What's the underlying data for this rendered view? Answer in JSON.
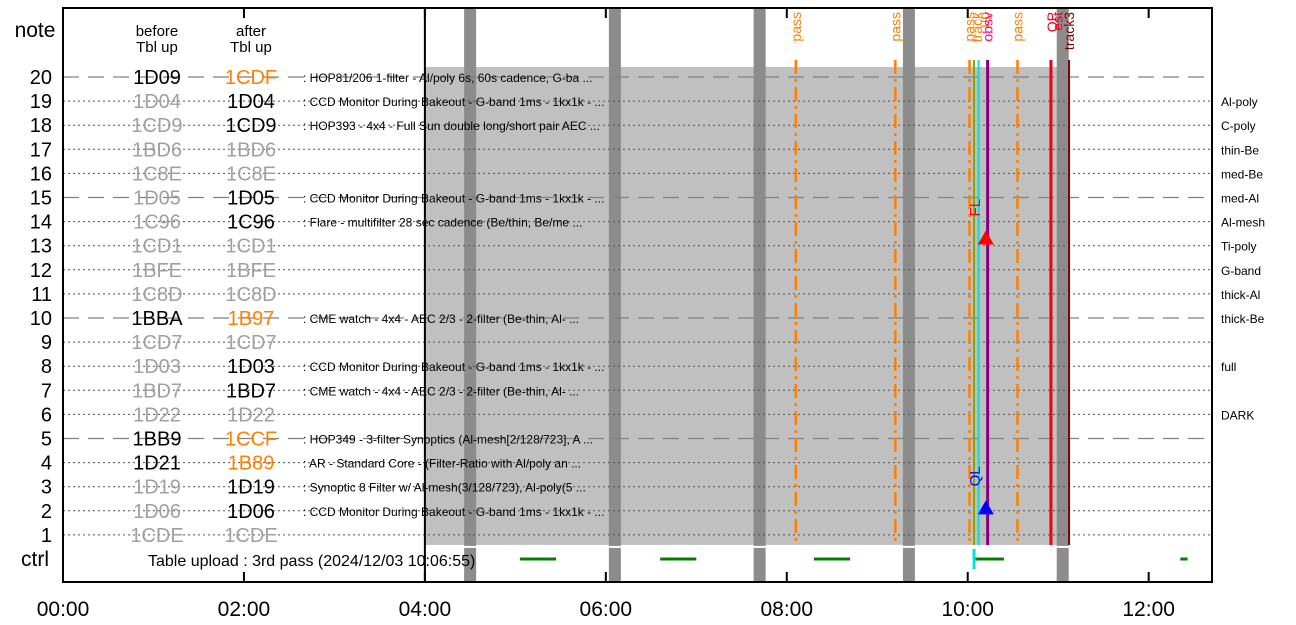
{
  "chart_data": {
    "type": "timeline",
    "header": {
      "before": [
        "before",
        "Tbl up"
      ],
      "after": [
        "after",
        "Tbl up"
      ]
    },
    "y_axis_labels": {
      "top": "note",
      "bottom": "ctrl"
    },
    "x_ticks": [
      "00:00",
      "02:00",
      "04:00",
      "06:00",
      "08:00",
      "10:00",
      "12:00"
    ],
    "x_range_hours": [
      0,
      12.7
    ],
    "table_upload_text": "Table upload : 3rd pass (2024/12/03 10:06:55)",
    "colors": {
      "shade": "#c0c0c0",
      "grey_band": "#8c8c8c",
      "pass": "#ff8000",
      "obsv": "#ff0080",
      "purple": "#800080",
      "red_line": "#e8001c",
      "track_line": "#800000",
      "ctrl_green": "#008000",
      "cyan": "#00e0e0",
      "olive": "#90a000",
      "ql_blue": "#0000ff"
    },
    "shaded_interval_hours": [
      4.0,
      11.05
    ],
    "grey_bands_hours": [
      4.5,
      6.1,
      7.7,
      9.35,
      11.05
    ],
    "pass_lines_hours": [
      8.1,
      9.2,
      10.02,
      10.55
    ],
    "top_labels": [
      {
        "text": "pass",
        "t": 8.1,
        "color": "#ff8000"
      },
      {
        "text": "pass",
        "t": 9.2,
        "color": "#ff8000"
      },
      {
        "text": "pass",
        "t": 10.02,
        "color": "#ff8000"
      },
      {
        "text": "track",
        "t": 10.1,
        "color": "#ff8000"
      },
      {
        "text": "up",
        "t": 10.18,
        "color": "#ff8000"
      },
      {
        "text": "obsv",
        "t": 10.22,
        "color": "#ff0080"
      },
      {
        "text": "pass",
        "t": 10.55,
        "color": "#ff8000"
      },
      {
        "text": "OP",
        "t": 10.93,
        "color": "#e8001c"
      },
      {
        "text": "est",
        "t": 10.99,
        "color": "#e8001c"
      },
      {
        "text": "track3",
        "t": 11.12,
        "color": "#800000"
      }
    ],
    "vertical_lines_hours": {
      "olive": 10.07,
      "cyan": 10.12,
      "purple": 10.22,
      "red": 10.92,
      "track": 11.12
    },
    "markers": [
      {
        "label": "FL",
        "t": 10.2,
        "row": 13.3,
        "color": "#ff0000"
      },
      {
        "label": "QL",
        "t": 10.2,
        "row": 2.1,
        "color": "#0000ff"
      }
    ],
    "ctrl_segments_hours": [
      [
        5.05,
        5.45
      ],
      [
        6.6,
        7.0
      ],
      [
        8.3,
        8.7
      ],
      [
        10.08,
        10.4
      ],
      [
        12.35,
        12.43
      ]
    ],
    "cyan_ctrl_hours": 10.07,
    "rows": [
      {
        "n": 20,
        "before": "1D09",
        "before_state": "active",
        "after": "1CDF",
        "after_state": "changed",
        "desc": ": HOP81/206 1-filter - Al/poly 6s, 60s cadence, G-ba ...",
        "right": "",
        "dash": true
      },
      {
        "n": 19,
        "before": "1D04",
        "before_state": "inactive",
        "after": "1D04",
        "after_state": "active",
        "desc": ": CCD Monitor During Bakeout - G-band 1ms - 1kx1k - ...",
        "right": "Al-poly",
        "dash": false
      },
      {
        "n": 18,
        "before": "1CD9",
        "before_state": "inactive",
        "after": "1CD9",
        "after_state": "active",
        "desc": ": HOP393 - 4x4 - Full Sun double long/short pair AEC ...",
        "right": "C-poly",
        "dash": false
      },
      {
        "n": 17,
        "before": "1BD6",
        "before_state": "inactive",
        "after": "1BD6",
        "after_state": "inactive",
        "desc": "",
        "right": "thin-Be",
        "dash": false
      },
      {
        "n": 16,
        "before": "1C8E",
        "before_state": "inactive",
        "after": "1C8E",
        "after_state": "inactive",
        "desc": "",
        "right": "med-Be",
        "dash": false
      },
      {
        "n": 15,
        "before": "1D05",
        "before_state": "inactive",
        "after": "1D05",
        "after_state": "active",
        "desc": ": CCD Monitor During Bakeout - G-band 1ms - 1kx1k - ...",
        "right": "med-Al",
        "dash": true
      },
      {
        "n": 14,
        "before": "1C96",
        "before_state": "inactive",
        "after": "1C96",
        "after_state": "active",
        "desc": ": Flare - multifilter 28 sec cadence (Be/thin, Be/me ...",
        "right": "Al-mesh",
        "dash": false
      },
      {
        "n": 13,
        "before": "1CD1",
        "before_state": "inactive",
        "after": "1CD1",
        "after_state": "inactive",
        "desc": "",
        "right": "Ti-poly",
        "dash": false
      },
      {
        "n": 12,
        "before": "1BFE",
        "before_state": "inactive",
        "after": "1BFE",
        "after_state": "inactive",
        "desc": "",
        "right": "G-band",
        "dash": false
      },
      {
        "n": 11,
        "before": "1C8D",
        "before_state": "inactive",
        "after": "1C8D",
        "after_state": "inactive",
        "desc": "",
        "right": "thick-Al",
        "dash": false
      },
      {
        "n": 10,
        "before": "1BBA",
        "before_state": "active",
        "after": "1B97",
        "after_state": "changed",
        "desc": ": CME watch - 4x4 - AEC 2/3 - 2-filter (Be-thin, Al- ...",
        "right": "thick-Be",
        "dash": true
      },
      {
        "n": 9,
        "before": "1CD7",
        "before_state": "inactive",
        "after": "1CD7",
        "after_state": "inactive",
        "desc": "",
        "right": "",
        "dash": false
      },
      {
        "n": 8,
        "before": "1D03",
        "before_state": "inactive",
        "after": "1D03",
        "after_state": "active",
        "desc": ": CCD Monitor During Bakeout - G-band 1ms - 1kx1k - ...",
        "right": "full",
        "dash": false
      },
      {
        "n": 7,
        "before": "1BD7",
        "before_state": "inactive",
        "after": "1BD7",
        "after_state": "active",
        "desc": ": CME watch - 4x4 - AEC 2/3 - 2-filter (Be-thin, Al- ...",
        "right": "",
        "dash": false
      },
      {
        "n": 6,
        "before": "1D22",
        "before_state": "inactive",
        "after": "1D22",
        "after_state": "inactive",
        "desc": "",
        "right": "DARK",
        "dash": false
      },
      {
        "n": 5,
        "before": "1BB9",
        "before_state": "active",
        "after": "1CCF",
        "after_state": "changed",
        "desc": ": HOP349 - 3-filter Synoptics (Al-mesh[2/128/723], A ...",
        "right": "",
        "dash": true
      },
      {
        "n": 4,
        "before": "1D21",
        "before_state": "active",
        "after": "1B89",
        "after_state": "changed",
        "desc": ": AR - Standard Core - (Filter-Ratio with Al/poly an ...",
        "right": "",
        "dash": false
      },
      {
        "n": 3,
        "before": "1D19",
        "before_state": "inactive",
        "after": "1D19",
        "after_state": "active",
        "desc": ": Synoptic 8 Filter w/ Al-mesh(3/128/723), Al-poly(5 ...",
        "right": "",
        "dash": false
      },
      {
        "n": 2,
        "before": "1D06",
        "before_state": "inactive",
        "after": "1D06",
        "after_state": "active",
        "desc": ": CCD Monitor During Bakeout - G-band 1ms - 1kx1k - ...",
        "right": "",
        "dash": false
      },
      {
        "n": 1,
        "before": "1CDE",
        "before_state": "inactive",
        "after": "1CDE",
        "after_state": "inactive",
        "desc": "",
        "right": "",
        "dash": false
      }
    ]
  }
}
